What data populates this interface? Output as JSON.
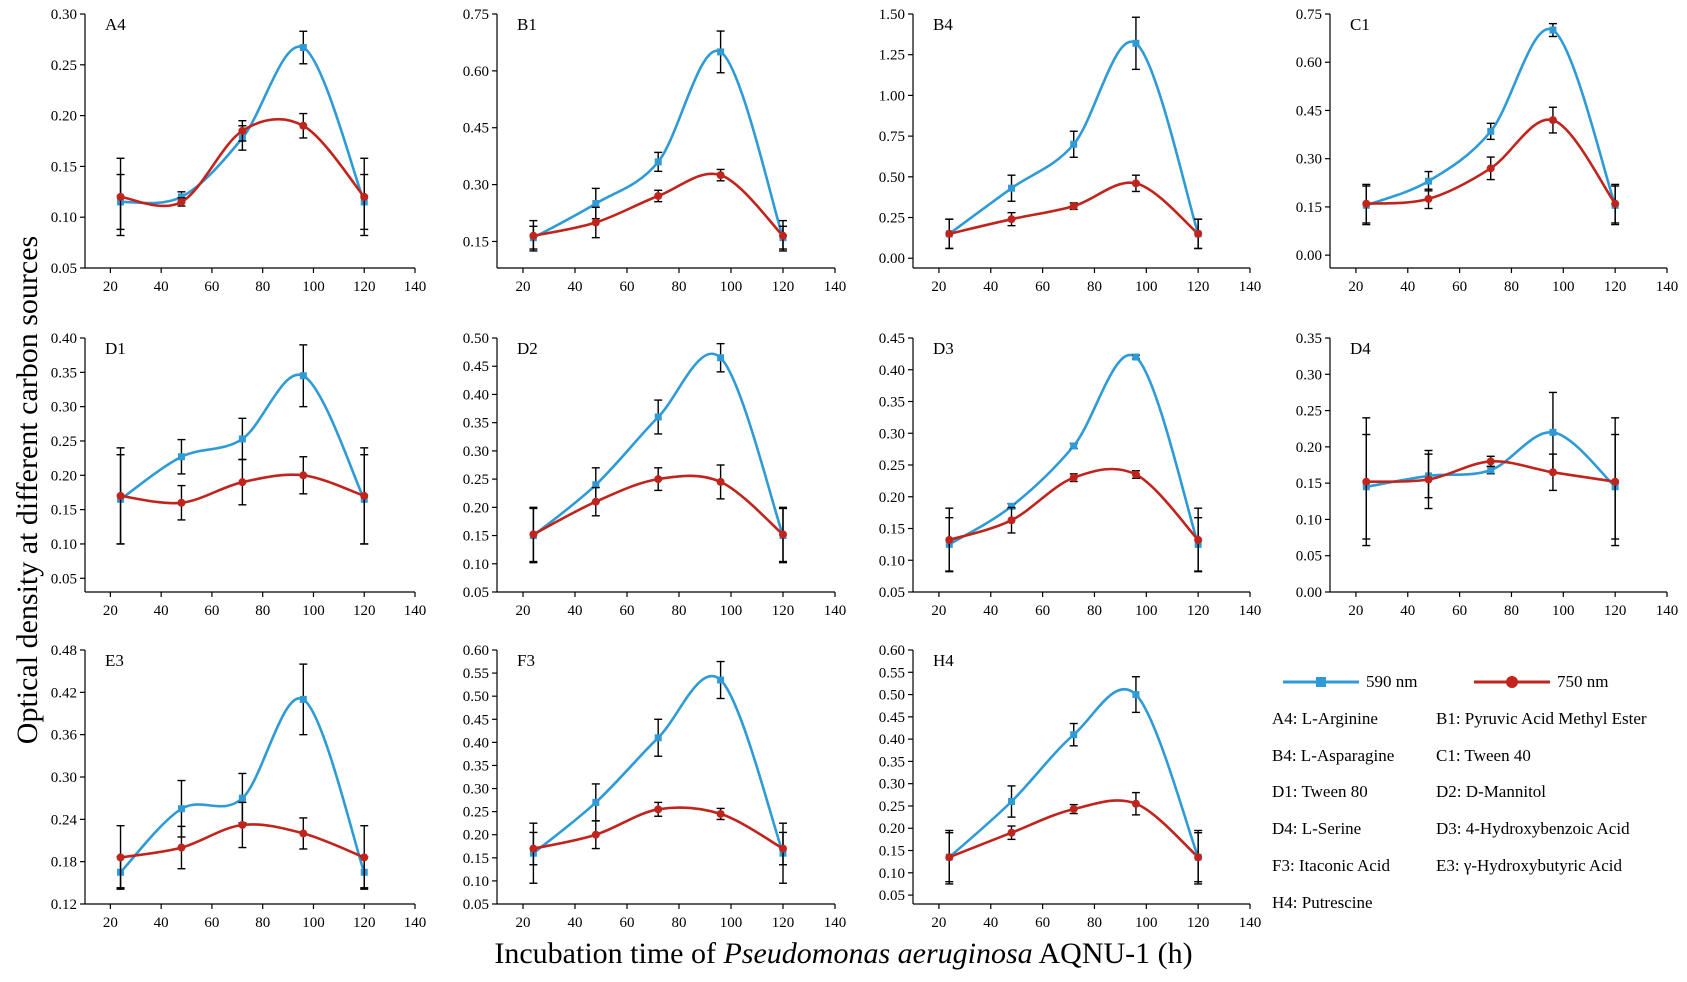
{
  "figure": {
    "y_label": "Optical density at different carbon sources",
    "x_label": {
      "prefix": "Incubation time of ",
      "species": "Pseudomonas aeruginosa",
      "suffix": " AQNU-1 (h)"
    }
  },
  "legend": {
    "series": [
      {
        "name": "590 nm",
        "color": "#2e9bd6",
        "marker": "square"
      },
      {
        "name": "750 nm",
        "color": "#c0241c",
        "marker": "circle"
      }
    ],
    "keys": [
      "A4: L-Arginine",
      "B1: Pyruvic Acid Methyl Ester",
      "B4: L-Asparagine",
      "C1: Tween 40",
      "D1: Tween 80",
      "D2: D-Mannitol",
      "D4: L-Serine",
      "D3: 4-Hydroxybenzoic Acid",
      "F3: Itaconic Acid",
      "E3: γ-Hydroxybutyric Acid",
      "H4: Putrescine"
    ]
  },
  "chart_data": [
    {
      "type": "line",
      "title": "A4",
      "x": [
        24,
        48,
        72,
        96,
        120
      ],
      "xlim": [
        10,
        140
      ],
      "xticks": [
        20,
        40,
        60,
        80,
        100,
        120,
        140
      ],
      "ylim": [
        0.05,
        0.3
      ],
      "yticks": [
        0.05,
        0.1,
        0.15,
        0.2,
        0.25,
        0.3
      ],
      "ydec": 2,
      "series": [
        {
          "name": "590 nm",
          "values": [
            0.115,
            0.12,
            0.178,
            0.267,
            0.115
          ],
          "err": [
            0.027,
            0.005,
            0.012,
            0.016,
            0.027
          ]
        },
        {
          "name": "750 nm",
          "values": [
            0.12,
            0.115,
            0.185,
            0.19,
            0.12
          ],
          "err": [
            0.038,
            0.004,
            0.01,
            0.012,
            0.038
          ]
        }
      ]
    },
    {
      "type": "line",
      "title": "B1",
      "x": [
        24,
        48,
        72,
        96,
        120
      ],
      "xlim": [
        10,
        140
      ],
      "xticks": [
        20,
        40,
        60,
        80,
        100,
        120,
        140
      ],
      "ylim": [
        0.08,
        0.75
      ],
      "yticks": [
        0.15,
        0.3,
        0.45,
        0.6,
        0.75
      ],
      "ydec": 2,
      "series": [
        {
          "name": "590 nm",
          "values": [
            0.16,
            0.25,
            0.36,
            0.65,
            0.16
          ],
          "err": [
            0.03,
            0.04,
            0.025,
            0.055,
            0.03
          ]
        },
        {
          "name": "750 nm",
          "values": [
            0.165,
            0.2,
            0.27,
            0.325,
            0.165
          ],
          "err": [
            0.04,
            0.04,
            0.015,
            0.015,
            0.04
          ]
        }
      ]
    },
    {
      "type": "line",
      "title": "B4",
      "x": [
        24,
        48,
        72,
        96,
        120
      ],
      "xlim": [
        10,
        140
      ],
      "xticks": [
        20,
        40,
        60,
        80,
        100,
        120,
        140
      ],
      "ylim": [
        -0.06,
        1.5
      ],
      "yticks": [
        0.0,
        0.25,
        0.5,
        0.75,
        1.0,
        1.25,
        1.5
      ],
      "ydec": 2,
      "series": [
        {
          "name": "590 nm",
          "values": [
            0.15,
            0.43,
            0.7,
            1.32,
            0.15
          ],
          "err": [
            0.09,
            0.08,
            0.08,
            0.16,
            0.09
          ]
        },
        {
          "name": "750 nm",
          "values": [
            0.15,
            0.24,
            0.32,
            0.46,
            0.15
          ],
          "err": [
            0.09,
            0.04,
            0.02,
            0.05,
            0.09
          ]
        }
      ]
    },
    {
      "type": "line",
      "title": "C1",
      "x": [
        24,
        48,
        72,
        96,
        120
      ],
      "xlim": [
        10,
        140
      ],
      "xticks": [
        20,
        40,
        60,
        80,
        100,
        120,
        140
      ],
      "ylim": [
        -0.04,
        0.75
      ],
      "yticks": [
        0.0,
        0.15,
        0.3,
        0.45,
        0.6,
        0.75
      ],
      "ydec": 2,
      "series": [
        {
          "name": "590 nm",
          "values": [
            0.155,
            0.23,
            0.385,
            0.7,
            0.155
          ],
          "err": [
            0.06,
            0.03,
            0.025,
            0.02,
            0.06
          ]
        },
        {
          "name": "750 nm",
          "values": [
            0.16,
            0.175,
            0.27,
            0.42,
            0.16
          ],
          "err": [
            0.06,
            0.03,
            0.035,
            0.04,
            0.06
          ]
        }
      ]
    },
    {
      "type": "line",
      "title": "D1",
      "x": [
        24,
        48,
        72,
        96,
        120
      ],
      "xlim": [
        10,
        140
      ],
      "xticks": [
        20,
        40,
        60,
        80,
        100,
        120,
        140
      ],
      "ylim": [
        0.03,
        0.4
      ],
      "yticks": [
        0.05,
        0.1,
        0.15,
        0.2,
        0.25,
        0.3,
        0.35,
        0.4
      ],
      "ydec": 2,
      "series": [
        {
          "name": "590 nm",
          "values": [
            0.165,
            0.227,
            0.253,
            0.345,
            0.165
          ],
          "err": [
            0.065,
            0.025,
            0.03,
            0.045,
            0.065
          ]
        },
        {
          "name": "750 nm",
          "values": [
            0.17,
            0.16,
            0.19,
            0.2,
            0.17
          ],
          "err": [
            0.07,
            0.025,
            0.033,
            0.027,
            0.07
          ]
        }
      ]
    },
    {
      "type": "line",
      "title": "D2",
      "x": [
        24,
        48,
        72,
        96,
        120
      ],
      "xlim": [
        10,
        140
      ],
      "xticks": [
        20,
        40,
        60,
        80,
        100,
        120,
        140
      ],
      "ylim": [
        0.05,
        0.5
      ],
      "yticks": [
        0.05,
        0.1,
        0.15,
        0.2,
        0.25,
        0.3,
        0.35,
        0.4,
        0.45,
        0.5
      ],
      "ydec": 2,
      "series": [
        {
          "name": "590 nm",
          "values": [
            0.15,
            0.24,
            0.36,
            0.465,
            0.15
          ],
          "err": [
            0.048,
            0.03,
            0.03,
            0.025,
            0.048
          ]
        },
        {
          "name": "750 nm",
          "values": [
            0.152,
            0.21,
            0.25,
            0.245,
            0.152
          ],
          "err": [
            0.048,
            0.025,
            0.02,
            0.03,
            0.048
          ]
        }
      ]
    },
    {
      "type": "line",
      "title": "D3",
      "x": [
        24,
        48,
        72,
        96,
        120
      ],
      "xlim": [
        10,
        140
      ],
      "xticks": [
        20,
        40,
        60,
        80,
        100,
        120,
        140
      ],
      "ylim": [
        0.05,
        0.45
      ],
      "yticks": [
        0.05,
        0.1,
        0.15,
        0.2,
        0.25,
        0.3,
        0.35,
        0.4,
        0.45
      ],
      "ydec": 2,
      "series": [
        {
          "name": "590 nm",
          "values": [
            0.125,
            0.185,
            0.28,
            0.42,
            0.125
          ],
          "err": [
            0.042,
            0.004,
            0.004,
            0.003,
            0.042
          ]
        },
        {
          "name": "750 nm",
          "values": [
            0.132,
            0.163,
            0.23,
            0.235,
            0.132
          ],
          "err": [
            0.05,
            0.02,
            0.006,
            0.006,
            0.05
          ]
        }
      ]
    },
    {
      "type": "line",
      "title": "D4",
      "x": [
        24,
        48,
        72,
        96,
        120
      ],
      "xlim": [
        10,
        140
      ],
      "xticks": [
        20,
        40,
        60,
        80,
        100,
        120,
        140
      ],
      "ylim": [
        0.0,
        0.35
      ],
      "yticks": [
        0.0,
        0.05,
        0.1,
        0.15,
        0.2,
        0.25,
        0.3,
        0.35
      ],
      "ydec": 2,
      "series": [
        {
          "name": "590 nm",
          "values": [
            0.145,
            0.16,
            0.168,
            0.22,
            0.145
          ],
          "err": [
            0.072,
            0.03,
            0.005,
            0.055,
            0.072
          ]
        },
        {
          "name": "750 nm",
          "values": [
            0.152,
            0.155,
            0.18,
            0.165,
            0.152
          ],
          "err": [
            0.088,
            0.04,
            0.007,
            0.025,
            0.088
          ]
        }
      ]
    },
    {
      "type": "line",
      "title": "E3",
      "x": [
        24,
        48,
        72,
        96,
        120
      ],
      "xlim": [
        10,
        140
      ],
      "xticks": [
        20,
        40,
        60,
        80,
        100,
        120,
        140
      ],
      "ylim": [
        0.12,
        0.48
      ],
      "yticks": [
        0.12,
        0.18,
        0.24,
        0.3,
        0.36,
        0.42,
        0.48
      ],
      "ydec": 2,
      "series": [
        {
          "name": "590 nm",
          "values": [
            0.165,
            0.255,
            0.27,
            0.41,
            0.165
          ],
          "err": [
            0.022,
            0.04,
            0.035,
            0.05,
            0.022
          ]
        },
        {
          "name": "750 nm",
          "values": [
            0.186,
            0.2,
            0.232,
            0.22,
            0.186
          ],
          "err": [
            0.045,
            0.03,
            0.032,
            0.022,
            0.045
          ]
        }
      ]
    },
    {
      "type": "line",
      "title": "F3",
      "x": [
        24,
        48,
        72,
        96,
        120
      ],
      "xlim": [
        10,
        140
      ],
      "xticks": [
        20,
        40,
        60,
        80,
        100,
        120,
        140
      ],
      "ylim": [
        0.05,
        0.6
      ],
      "yticks": [
        0.05,
        0.1,
        0.15,
        0.2,
        0.25,
        0.3,
        0.35,
        0.4,
        0.45,
        0.5,
        0.55,
        0.6
      ],
      "ydec": 2,
      "series": [
        {
          "name": "590 nm",
          "values": [
            0.16,
            0.27,
            0.41,
            0.535,
            0.16
          ],
          "err": [
            0.065,
            0.04,
            0.04,
            0.04,
            0.065
          ]
        },
        {
          "name": "750 nm",
          "values": [
            0.17,
            0.2,
            0.255,
            0.245,
            0.17
          ],
          "err": [
            0.035,
            0.03,
            0.015,
            0.012,
            0.035
          ]
        }
      ]
    },
    {
      "type": "line",
      "title": "H4",
      "x": [
        24,
        48,
        72,
        96,
        120
      ],
      "xlim": [
        10,
        140
      ],
      "xticks": [
        20,
        40,
        60,
        80,
        100,
        120,
        140
      ],
      "ylim": [
        0.03,
        0.6
      ],
      "yticks": [
        0.05,
        0.1,
        0.15,
        0.2,
        0.25,
        0.3,
        0.35,
        0.4,
        0.45,
        0.5,
        0.55,
        0.6
      ],
      "ydec": 2,
      "series": [
        {
          "name": "590 nm",
          "values": [
            0.135,
            0.26,
            0.41,
            0.5,
            0.135
          ],
          "err": [
            0.055,
            0.035,
            0.025,
            0.04,
            0.055
          ]
        },
        {
          "name": "750 nm",
          "values": [
            0.135,
            0.19,
            0.243,
            0.255,
            0.135
          ],
          "err": [
            0.06,
            0.015,
            0.01,
            0.025,
            0.06
          ]
        }
      ]
    }
  ]
}
